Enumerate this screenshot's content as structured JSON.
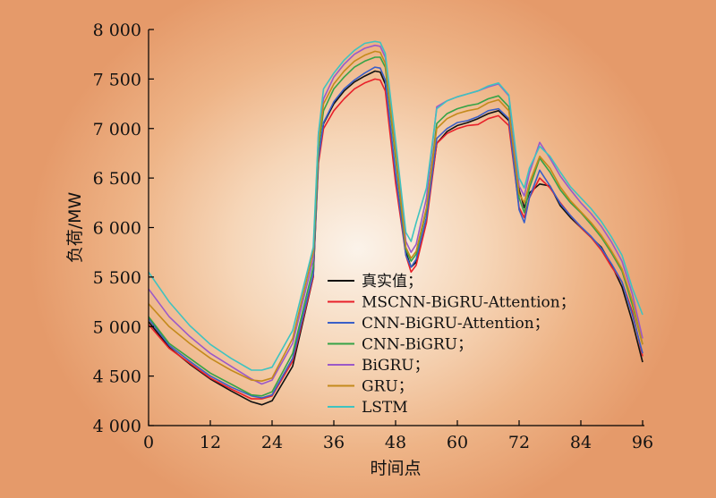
{
  "chart_data": {
    "type": "line",
    "xlabel": "时间点",
    "ylabel": "负荷/MW",
    "xlim": [
      0,
      96
    ],
    "ylim": [
      4000,
      8000
    ],
    "x_ticks": [
      "0",
      "12",
      "24",
      "36",
      "48",
      "60",
      "72",
      "84",
      "96"
    ],
    "y_ticks": [
      "4 000",
      "4 500",
      "5 000",
      "5 500",
      "6 000",
      "6 500",
      "7 000",
      "7 500",
      "8 000"
    ],
    "legend_position": "center-right",
    "grid": false,
    "x": [
      0,
      4,
      8,
      12,
      16,
      20,
      22,
      24,
      28,
      32,
      33,
      34,
      36,
      38,
      40,
      42,
      44,
      45,
      46,
      48,
      50,
      51,
      52,
      54,
      56,
      58,
      60,
      62,
      64,
      66,
      68,
      70,
      72,
      73,
      74,
      76,
      78,
      80,
      82,
      84,
      86,
      88,
      90,
      92,
      94,
      96
    ],
    "series": [
      {
        "name": "真实值；",
        "color": "#111111",
        "values": [
          5050,
          4790,
          4620,
          4470,
          4350,
          4240,
          4210,
          4250,
          4600,
          5500,
          6700,
          7050,
          7250,
          7380,
          7470,
          7530,
          7580,
          7570,
          7450,
          6500,
          5750,
          5600,
          5650,
          6100,
          6850,
          6970,
          7030,
          7060,
          7100,
          7150,
          7180,
          7080,
          6380,
          6200,
          6350,
          6440,
          6420,
          6220,
          6100,
          6000,
          5900,
          5800,
          5620,
          5400,
          5050,
          4640
        ]
      },
      {
        "name": "MSCNN-BiGRU-Attention；",
        "color": "#e8202a",
        "values": [
          5020,
          4780,
          4630,
          4480,
          4370,
          4270,
          4270,
          4300,
          4650,
          5500,
          6650,
          7000,
          7180,
          7300,
          7400,
          7460,
          7500,
          7490,
          7380,
          6450,
          5720,
          5550,
          5620,
          6050,
          6850,
          6950,
          7000,
          7030,
          7040,
          7100,
          7130,
          7030,
          6200,
          6100,
          6300,
          6500,
          6400,
          6250,
          6120,
          6000,
          5900,
          5770,
          5600,
          5450,
          5150,
          4700
        ]
      },
      {
        "name": "CNN-BiGRU-Attention；",
        "color": "#3a5fc8",
        "values": [
          5080,
          4810,
          4650,
          4500,
          4390,
          4300,
          4280,
          4310,
          4680,
          5530,
          6700,
          7060,
          7270,
          7400,
          7490,
          7560,
          7620,
          7610,
          7490,
          6550,
          5720,
          5600,
          5680,
          6100,
          6900,
          7000,
          7060,
          7080,
          7120,
          7180,
          7200,
          7100,
          6180,
          6050,
          6300,
          6580,
          6420,
          6240,
          6120,
          6010,
          5910,
          5790,
          5630,
          5450,
          5120,
          4730
        ]
      },
      {
        "name": "CNN-BiGRU；",
        "color": "#36a347",
        "values": [
          5100,
          4830,
          4680,
          4530,
          4420,
          4310,
          4300,
          4340,
          4730,
          5600,
          6800,
          7180,
          7400,
          7520,
          7620,
          7680,
          7720,
          7720,
          7620,
          6700,
          5780,
          5660,
          5730,
          6180,
          7050,
          7150,
          7200,
          7230,
          7250,
          7300,
          7330,
          7220,
          6300,
          6150,
          6400,
          6700,
          6560,
          6380,
          6250,
          6150,
          6030,
          5900,
          5740,
          5560,
          5220,
          4820
        ]
      },
      {
        "name": "BiGRU；",
        "color": "#9b59c8",
        "values": [
          5380,
          5100,
          4900,
          4730,
          4600,
          4470,
          4420,
          4460,
          4830,
          5680,
          6950,
          7300,
          7520,
          7650,
          7750,
          7810,
          7840,
          7830,
          7720,
          6800,
          5860,
          5750,
          5830,
          6300,
          7220,
          7280,
          7320,
          7350,
          7380,
          7420,
          7450,
          7330,
          6420,
          6320,
          6550,
          6860,
          6700,
          6520,
          6380,
          6250,
          6140,
          6010,
          5850,
          5660,
          5330,
          4880
        ]
      },
      {
        "name": "GRU；",
        "color": "#c48a1c",
        "values": [
          5230,
          5000,
          4830,
          4680,
          4560,
          4460,
          4450,
          4480,
          4880,
          5750,
          6850,
          7250,
          7450,
          7580,
          7680,
          7740,
          7780,
          7770,
          7660,
          6750,
          5800,
          5690,
          5760,
          6200,
          7000,
          7100,
          7150,
          7180,
          7200,
          7260,
          7290,
          7180,
          6340,
          6250,
          6450,
          6720,
          6600,
          6410,
          6270,
          6160,
          6050,
          5920,
          5760,
          5580,
          5260,
          4820
        ]
      },
      {
        "name": "LSTM",
        "color": "#3fc3c0",
        "values": [
          5550,
          5250,
          5010,
          4820,
          4680,
          4560,
          4560,
          4590,
          4960,
          5800,
          6950,
          7400,
          7560,
          7690,
          7790,
          7860,
          7880,
          7870,
          7760,
          6880,
          5950,
          5860,
          6050,
          6400,
          7200,
          7280,
          7320,
          7350,
          7380,
          7430,
          7460,
          7340,
          6500,
          6400,
          6600,
          6820,
          6720,
          6560,
          6410,
          6300,
          6190,
          6060,
          5900,
          5720,
          5390,
          5120
        ]
      }
    ]
  }
}
